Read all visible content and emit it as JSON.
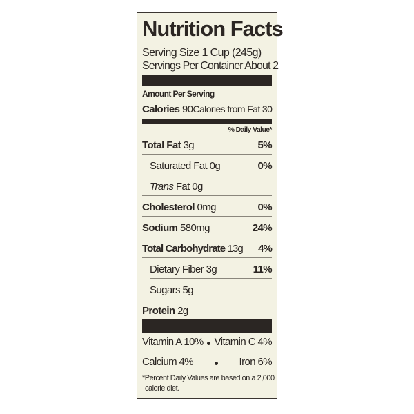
{
  "title": "Nutrition Facts",
  "serving_size": "Serving Size 1 Cup (245g)",
  "servings_per_container": "Servings Per Container About 2",
  "amount_per_serving": "Amount Per Serving",
  "calories": {
    "label": "Calories",
    "value": "90",
    "from_fat": "Calories from Fat 30"
  },
  "daily_value_header": "% Daily Value*",
  "nutrients": [
    {
      "label": "Total Fat",
      "amount": "3g",
      "dv": "5%"
    },
    {
      "label": "Saturated Fat",
      "amount": "0g",
      "dv": "0%"
    },
    {
      "label": "Trans",
      "label_rest": "Fat",
      "amount": "0g",
      "dv": ""
    },
    {
      "label": "Cholesterol",
      "amount": "0mg",
      "dv": "0%"
    },
    {
      "label": "Sodium",
      "amount": "580mg",
      "dv": "24%"
    },
    {
      "label": "Total Carbohydrate",
      "amount": "13g",
      "dv": "4%"
    },
    {
      "label": "Dietary Fiber",
      "amount": "3g",
      "dv": "11%"
    },
    {
      "label": "Sugars",
      "amount": "5g",
      "dv": ""
    },
    {
      "label": "Protein",
      "amount": "2g",
      "dv": ""
    }
  ],
  "vitamins": {
    "vitamin_a": "Vitamin A 10%",
    "vitamin_c": "Vitamin C 4%",
    "calcium": "Calcium 4%",
    "iron": "Iron 6%"
  },
  "footnote_line1": "*Percent Daily Values are based on a 2,000",
  "footnote_line2": "calorie diet."
}
